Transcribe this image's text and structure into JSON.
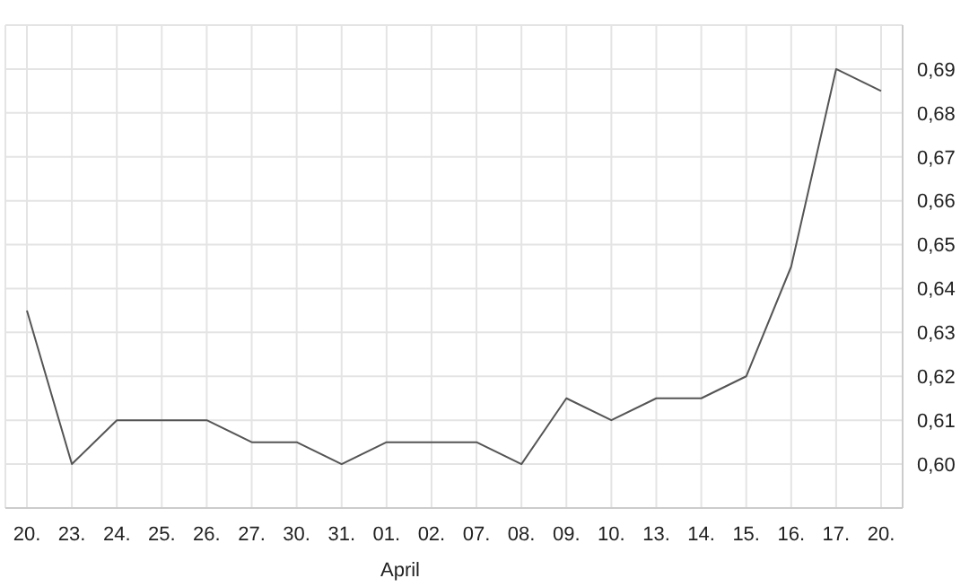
{
  "chart_data": {
    "type": "line",
    "categories": [
      "20.",
      "23.",
      "24.",
      "25.",
      "26.",
      "27.",
      "30.",
      "31.",
      "01.",
      "02.",
      "07.",
      "08.",
      "09.",
      "10.",
      "13.",
      "14.",
      "15.",
      "16.",
      "17.",
      "20."
    ],
    "series": [
      {
        "color": "#555555",
        "values": [
          0.635,
          0.6,
          0.61,
          0.61,
          0.61,
          0.605,
          0.605,
          0.6,
          0.605,
          0.605,
          0.605,
          0.6,
          0.615,
          0.61,
          0.615,
          0.615,
          0.62,
          0.645,
          0.69,
          0.685
        ]
      }
    ],
    "xlabel": "April",
    "ylim": [
      0.59,
      0.7
    ],
    "yticks": [
      {
        "value": 0.6,
        "label": "0,60"
      },
      {
        "value": 0.61,
        "label": "0,61"
      },
      {
        "value": 0.62,
        "label": "0,62"
      },
      {
        "value": 0.63,
        "label": "0,63"
      },
      {
        "value": 0.64,
        "label": "0,64"
      },
      {
        "value": 0.65,
        "label": "0,65"
      },
      {
        "value": 0.66,
        "label": "0,66"
      },
      {
        "value": 0.67,
        "label": "0,67"
      },
      {
        "value": 0.68,
        "label": "0,68"
      },
      {
        "value": 0.69,
        "label": "0,69"
      }
    ],
    "grid": true,
    "marker": "none",
    "line_style": "solid"
  }
}
